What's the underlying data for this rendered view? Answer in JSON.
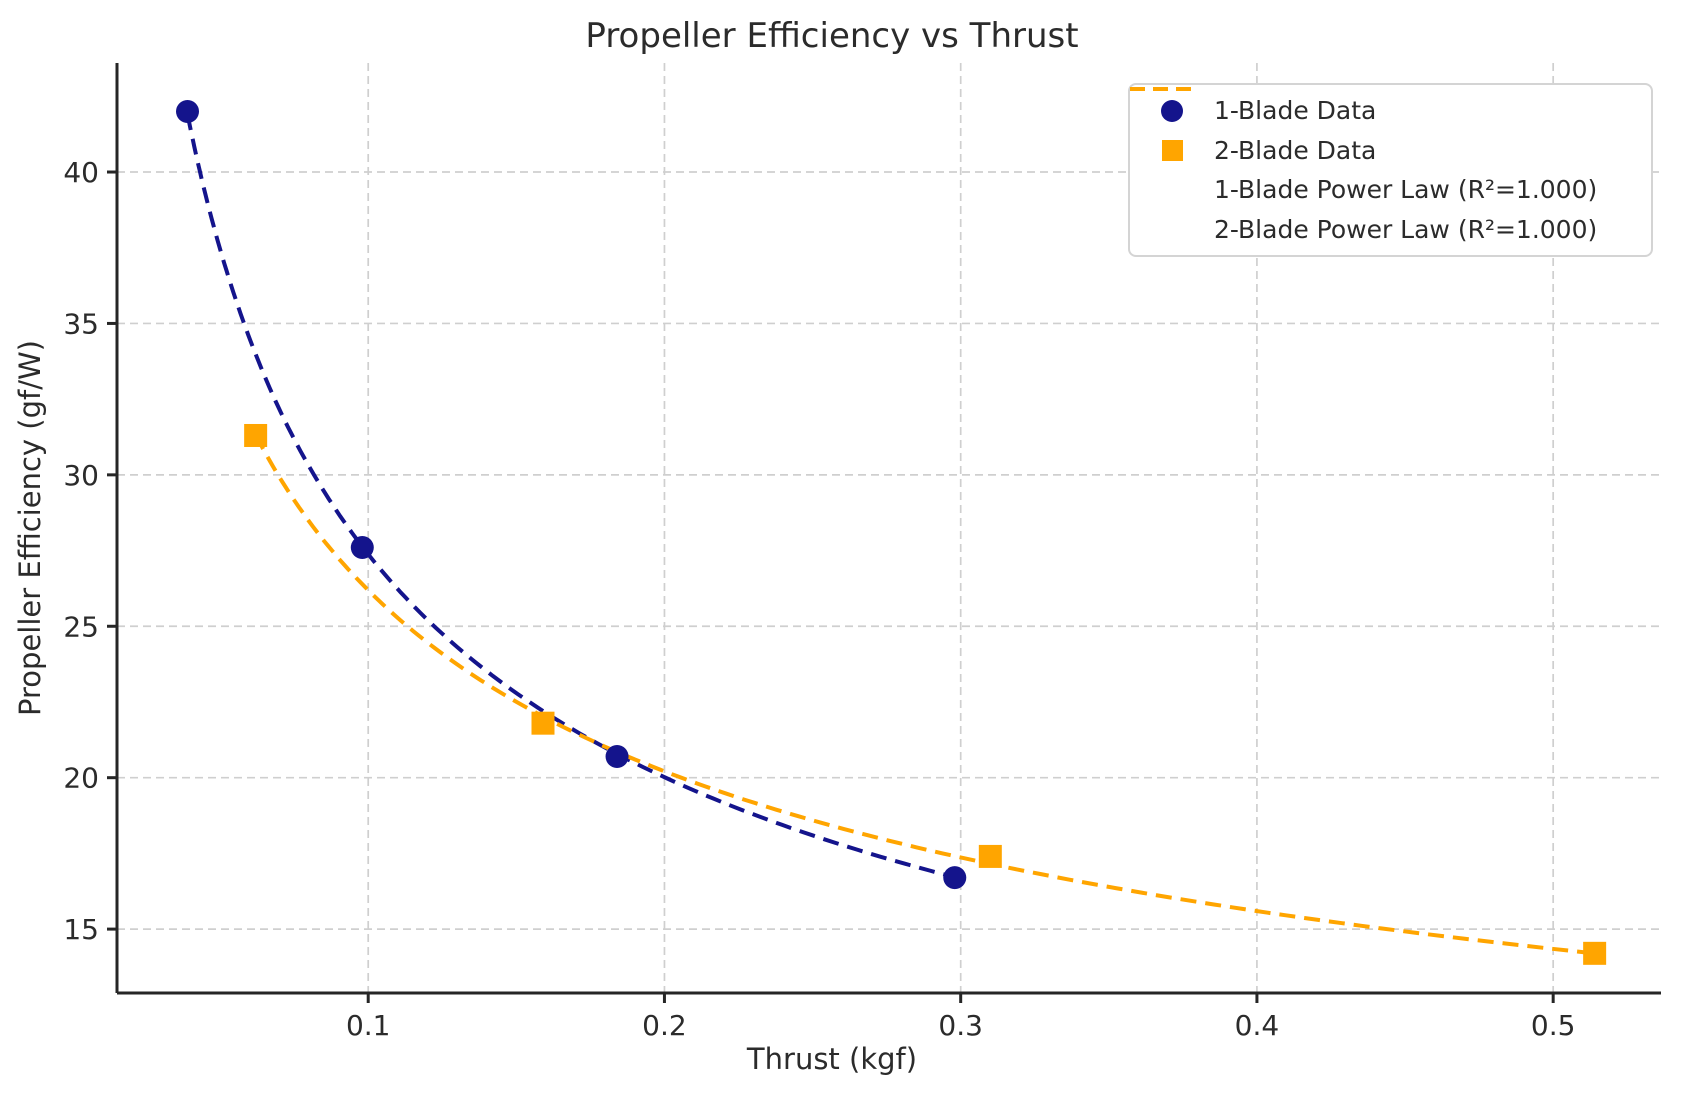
{
  "chart_data": {
    "type": "scatter",
    "title": "Propeller Efficiency vs Thrust",
    "xlabel": "Thrust (kgf)",
    "ylabel": "Propeller Efficiency (gf/W)",
    "xlim": [
      0.0152,
      0.5364
    ],
    "ylim": [
      12.89,
      43.6
    ],
    "xticks": [
      "0.1",
      "0.2",
      "0.3",
      "0.4",
      "0.5"
    ],
    "yticks": [
      "15",
      "20",
      "25",
      "30",
      "35",
      "40"
    ],
    "grid": true,
    "grid_style": "dashed",
    "legend_position": "upper right",
    "colors": {
      "blade1": "#14148C",
      "blade2": "#FFA500",
      "grid": "#cfcfcf",
      "spine": "#262626",
      "text": "#2b2b2b"
    },
    "series": [
      {
        "name": "1-Blade Data",
        "kind": "scatter",
        "marker": "circle",
        "color": "#14148C",
        "x": [
          0.039,
          0.098,
          0.184,
          0.298
        ],
        "y": [
          42.0,
          27.6,
          20.7,
          16.7
        ]
      },
      {
        "name": "2-Blade Data",
        "kind": "scatter",
        "marker": "square",
        "color": "#FFA500",
        "x": [
          0.062,
          0.159,
          0.31,
          0.514
        ],
        "y": [
          31.3,
          21.8,
          17.4,
          14.2
        ]
      },
      {
        "name": "1-Blade Power Law (R²=1.000)",
        "kind": "fit-line",
        "line_style": "dashed",
        "color": "#14148C",
        "fit": {
          "model": "power",
          "a": 9.67,
          "b": -0.452,
          "r2": "1.000"
        },
        "x_range": [
          0.039,
          0.298
        ]
      },
      {
        "name": "2-Blade Power Law (R²=1.000)",
        "kind": "fit-line",
        "line_style": "dashed",
        "color": "#FFA500",
        "fit": {
          "model": "power",
          "a": 11.07,
          "b": -0.374,
          "r2": "1.000"
        },
        "x_range": [
          0.062,
          0.514
        ]
      }
    ]
  }
}
